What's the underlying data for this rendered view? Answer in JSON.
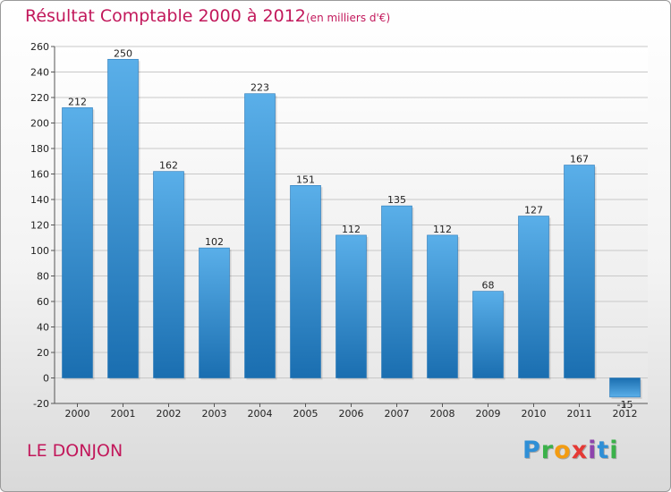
{
  "header": {
    "title": "Résultat Comptable 2000 à 2012",
    "subtitle": "(en milliers d'€)"
  },
  "footer": {
    "commune": "LE DONJON",
    "brand": "Proxiti"
  },
  "colors": {
    "accent_text": "#c2185b",
    "bar_top": "#5aafe9",
    "bar_bottom": "#1a6eb0"
  },
  "chart_data": {
    "type": "bar",
    "title": "Résultat Comptable 2000 à 2012",
    "subtitle": "(en milliers d'€)",
    "xlabel": "",
    "ylabel": "",
    "categories": [
      "2000",
      "2001",
      "2002",
      "2003",
      "2004",
      "2005",
      "2006",
      "2007",
      "2008",
      "2009",
      "2010",
      "2011",
      "2012"
    ],
    "values": [
      212,
      250,
      162,
      102,
      223,
      151,
      112,
      135,
      112,
      68,
      127,
      167,
      -15
    ],
    "data_labels": [
      "212",
      "250",
      "162",
      "102",
      "223",
      "151",
      "112",
      "135",
      "112",
      "68",
      "127",
      "167",
      "-15"
    ],
    "ylim": [
      -20,
      260
    ],
    "yticks": [
      -20,
      0,
      20,
      40,
      60,
      80,
      100,
      120,
      140,
      160,
      180,
      200,
      220,
      240,
      260
    ],
    "grid": true,
    "legend": "none"
  }
}
